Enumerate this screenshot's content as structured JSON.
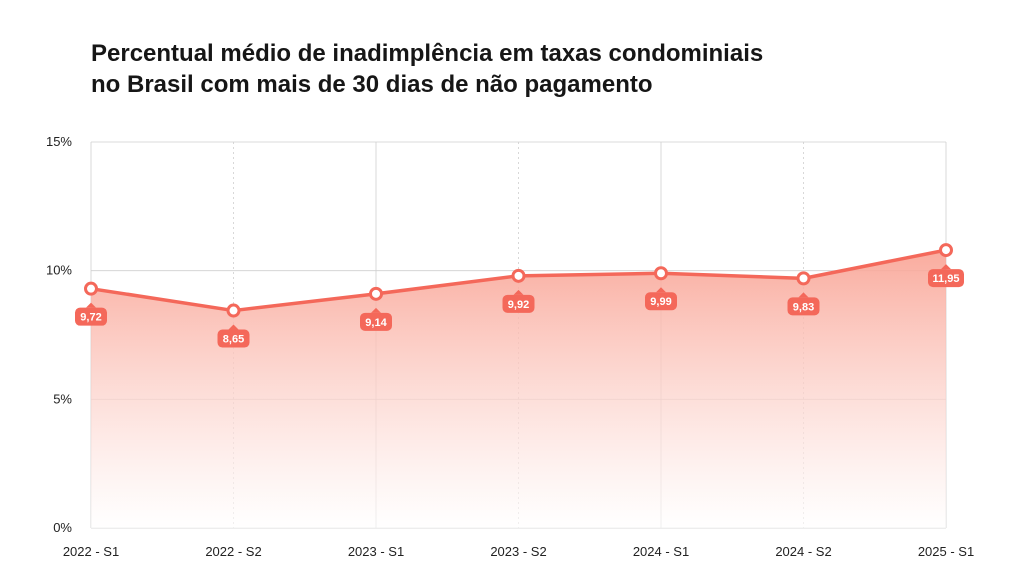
{
  "header": {
    "title_line1": "Percentual médio de inadimplência em taxas condominiais",
    "title_line2": "no Brasil com mais de 30 dias de não pagamento"
  },
  "colors": {
    "accent": "#f4685a",
    "accent_fill_top": "#f9a293",
    "grid": "#cfcfcf",
    "label_text": "#ffffff"
  },
  "chart_data": {
    "type": "area",
    "title": "Percentual médio de inadimplência em taxas condominiais no Brasil com mais de 30 dias de não pagamento",
    "categories": [
      "2022 - S1",
      "2022 - S2",
      "2023 - S1",
      "2023 - S2",
      "2024 - S1",
      "2024 - S2",
      "2025 - S1"
    ],
    "series": [
      {
        "values": [
          9.72,
          8.65,
          9.14,
          9.92,
          9.99,
          9.83,
          11.95
        ],
        "line_values": [
          9.3,
          8.45,
          9.1,
          9.8,
          9.9,
          9.7,
          10.8
        ],
        "labels": [
          "9,72",
          "8,65",
          "9,14",
          "9,92",
          "9,99",
          "9,83",
          "11,95"
        ]
      }
    ],
    "y_ticks": [
      0,
      5,
      10,
      15
    ],
    "y_tick_labels": [
      "0%",
      "5%",
      "10%",
      "15%"
    ],
    "ylim": [
      0,
      15
    ],
    "grid": true,
    "legend": "none"
  }
}
